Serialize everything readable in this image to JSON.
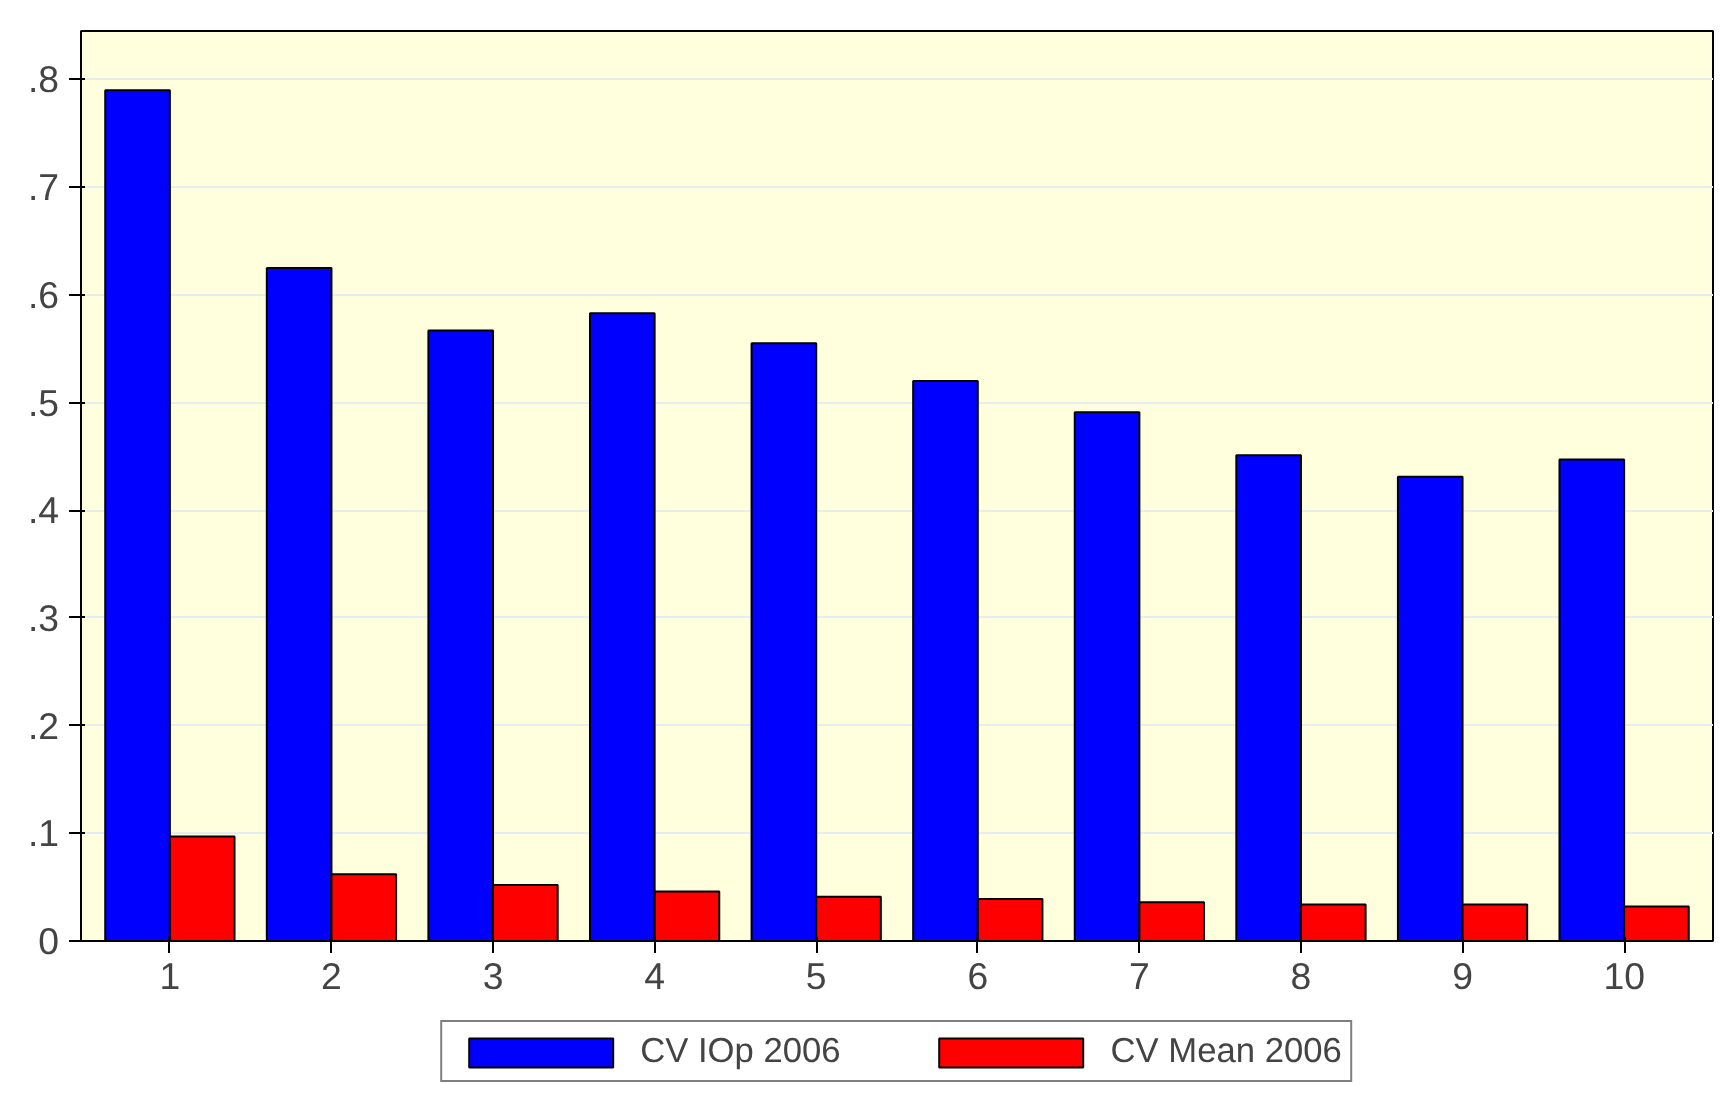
{
  "chart_data": {
    "type": "bar",
    "categories": [
      "1",
      "2",
      "3",
      "4",
      "5",
      "6",
      "7",
      "8",
      "9",
      "10"
    ],
    "series": [
      {
        "name": "CV IOp 2006",
        "color": "#0000ff",
        "values": [
          0.79,
          0.625,
          0.567,
          0.583,
          0.555,
          0.52,
          0.491,
          0.451,
          0.431,
          0.447
        ]
      },
      {
        "name": "CV Mean 2006",
        "color": "#ff0000",
        "values": [
          0.097,
          0.062,
          0.052,
          0.046,
          0.041,
          0.039,
          0.036,
          0.034,
          0.034,
          0.032
        ]
      }
    ],
    "ylim": [
      0,
      0.845
    ],
    "yticks": [
      0,
      {
        "value": 0.1,
        "label": ".1"
      },
      {
        "value": 0.2,
        "label": ".2"
      },
      {
        "value": 0.3,
        "label": ".3"
      },
      {
        "value": 0.4,
        "label": ".4"
      },
      {
        "value": 0.5,
        "label": ".5"
      },
      {
        "value": 0.6,
        "label": ".6"
      },
      {
        "value": 0.7,
        "label": ".7"
      },
      {
        "value": 0.8,
        "label": ".8"
      }
    ],
    "grid": "y",
    "legend": "bottom"
  }
}
